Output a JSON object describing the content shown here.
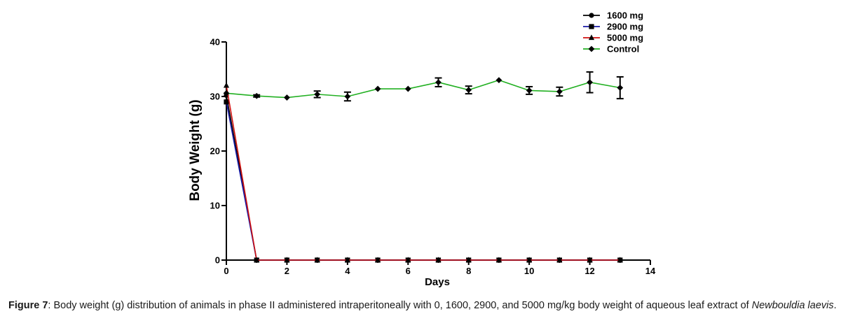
{
  "chart_data": {
    "type": "line",
    "title": "",
    "xlabel": "Days",
    "ylabel": "Body Weight (g)",
    "xlim": [
      0,
      14
    ],
    "ylim": [
      0,
      40
    ],
    "x_ticks": [
      0,
      2,
      4,
      6,
      8,
      10,
      12,
      14
    ],
    "y_ticks": [
      0,
      10,
      20,
      30,
      40
    ],
    "grid": false,
    "legend_position": "top-right",
    "series": [
      {
        "name": "1600 mg",
        "color": "#000000",
        "marker": "circle",
        "x": [
          0,
          1,
          2,
          3,
          4,
          5,
          6,
          7,
          8,
          9,
          10,
          11,
          12,
          13
        ],
        "y": [
          30.2,
          0,
          0,
          0,
          0,
          0,
          0,
          0,
          0,
          0,
          0,
          0,
          0,
          0
        ],
        "err": []
      },
      {
        "name": "2900 mg",
        "color": "#1a1aa6",
        "marker": "square",
        "x": [
          0,
          1,
          2,
          3,
          4,
          5,
          6,
          7,
          8,
          9,
          10,
          11,
          12,
          13
        ],
        "y": [
          29.0,
          0,
          0,
          0,
          0,
          0,
          0,
          0,
          0,
          0,
          0,
          0,
          0,
          0
        ],
        "err": []
      },
      {
        "name": "5000 mg",
        "color": "#d01010",
        "marker": "triangle",
        "x": [
          0,
          1,
          2,
          3,
          4,
          5,
          6,
          7,
          8,
          9,
          10,
          11,
          12,
          13
        ],
        "y": [
          32.0,
          0,
          0,
          0,
          0,
          0,
          0,
          0,
          0,
          0,
          0,
          0,
          0,
          0
        ],
        "err": []
      },
      {
        "name": "Control",
        "color": "#22b022",
        "marker": "diamond",
        "x": [
          0,
          1,
          2,
          3,
          4,
          5,
          6,
          7,
          8,
          9,
          10,
          11,
          12,
          13
        ],
        "y": [
          30.6,
          30.1,
          29.8,
          30.4,
          30.0,
          31.4,
          31.4,
          32.6,
          31.2,
          33.0,
          31.1,
          30.9,
          32.6,
          31.6
        ],
        "err": [
          0,
          0.2,
          0,
          0.6,
          0.8,
          0,
          0,
          0.8,
          0.7,
          0,
          0.7,
          0.8,
          1.9,
          2.0
        ]
      }
    ]
  },
  "caption": {
    "lead": "Figure 7",
    "text": ": Body weight (g) distribution of animals in phase II administered intraperitoneally with 0, 1600, 2900, and 5000 mg/kg body weight of aqueous leaf extract of ",
    "species": "Newbouldia laevis",
    "end": "."
  }
}
